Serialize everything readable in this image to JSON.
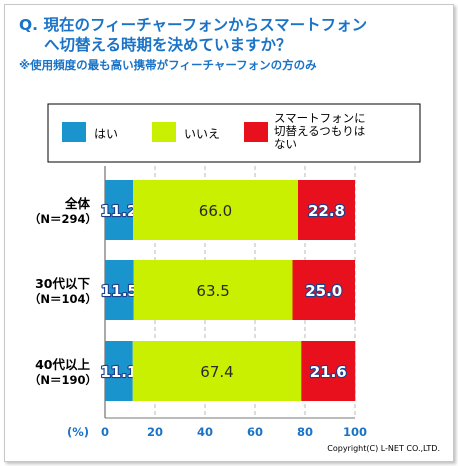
{
  "title": {
    "line1": "Q. 現在のフィーチャーフォンからスマートフォン",
    "line2": "へ切替える時期を決めていますか？",
    "note": "※使用頻度の最も高い携帯がフィーチャーフォンの方のみ"
  },
  "copyright": "Copyright(C) L-NET CO.,LTD.",
  "colors": {
    "hai": "#1a94cd",
    "iie": "#c8f000",
    "undecided": "#e8101c",
    "title": "#1a73c7"
  },
  "chart_data": {
    "type": "bar",
    "orientation": "horizontal",
    "stacked": true,
    "categories": [
      {
        "label": "全体",
        "n": "（N＝294）"
      },
      {
        "label": "30代以下",
        "n": "（N＝104）"
      },
      {
        "label": "40代以上",
        "n": "（N＝190）"
      }
    ],
    "series": [
      {
        "name": "はい",
        "color": "#1a94cd",
        "values": [
          11.2,
          11.5,
          11.1
        ],
        "labels": [
          "11.2",
          "11.5",
          "11.1"
        ]
      },
      {
        "name": "いいえ",
        "color": "#c8f000",
        "values": [
          66.0,
          63.5,
          67.4
        ],
        "labels": [
          "66.0",
          "63.5",
          "67.4"
        ]
      },
      {
        "name": "スマートフォンに切替えるつもりはない",
        "legend_lines": [
          "スマートフォンに",
          "切替えるつもりは",
          "ない"
        ],
        "color": "#e8101c",
        "values": [
          22.8,
          25.0,
          21.6
        ],
        "labels": [
          "22.8",
          "25.0",
          "21.6"
        ]
      }
    ],
    "x_unit": "(%)",
    "x_ticks": [
      0,
      20,
      40,
      60,
      80,
      100
    ],
    "xlim": [
      0,
      100
    ],
    "grid": true,
    "legend_position": "top"
  }
}
